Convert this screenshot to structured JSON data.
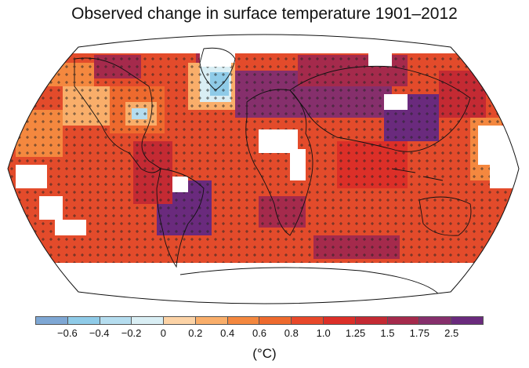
{
  "title": "Observed change in surface temperature 1901–2012",
  "legend": {
    "unit": "(°C)",
    "colors": [
      "#7ea7d4",
      "#8fcbe8",
      "#b5ddef",
      "#d9eef4",
      "#fcd3a6",
      "#f9ae6a",
      "#f4883f",
      "#ee6a2e",
      "#e8482a",
      "#dc2f28",
      "#c42a33",
      "#a52a4c",
      "#862f6c",
      "#6a2a7d"
    ],
    "tick_labels": [
      "−0.6",
      "−0.4",
      "−0.2",
      "0",
      "0.2",
      "0.4",
      "0.6",
      "0.8",
      "1.0",
      "1.25",
      "1.5",
      "1.75",
      "2.5"
    ]
  },
  "map": {
    "projection": "Robinson",
    "ocean_base_color": "#e34b2b",
    "missing_data_color": "#ffffff",
    "significance_marker": "+"
  }
}
